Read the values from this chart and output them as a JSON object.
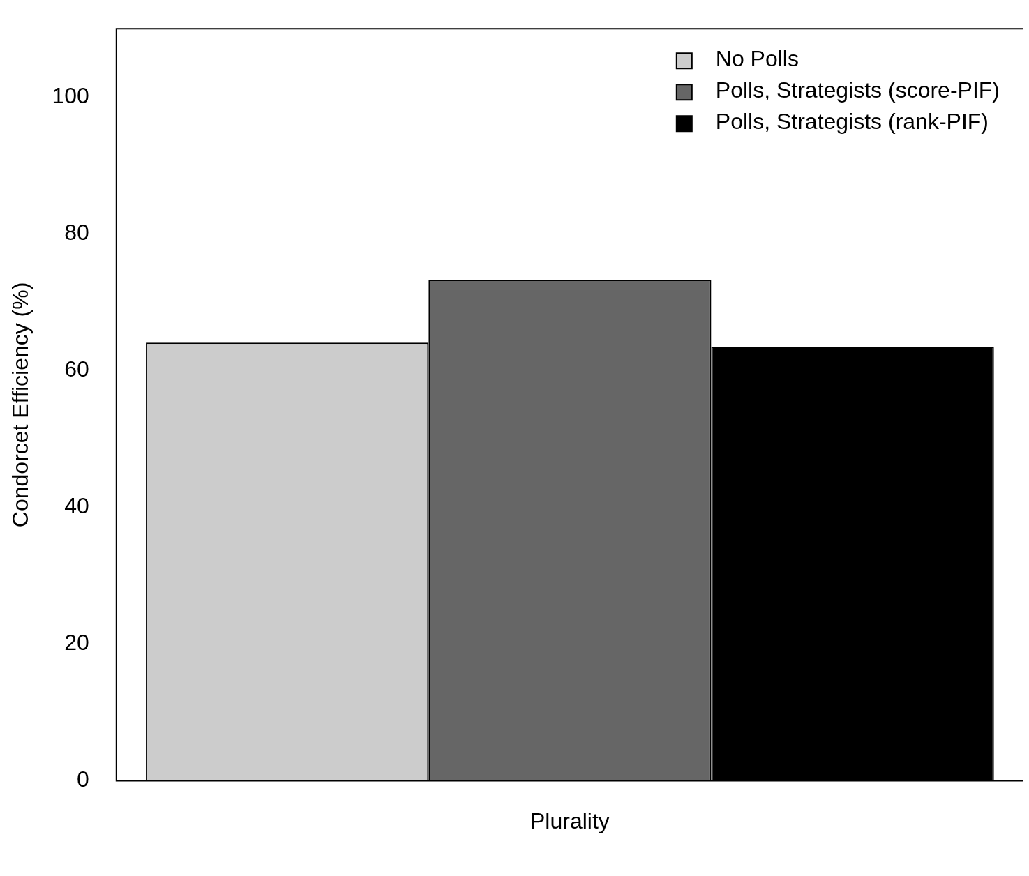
{
  "chart_data": {
    "type": "bar",
    "ylabel": "Condorcet Efficiency (%)",
    "categories": [
      "Plurality"
    ],
    "series": [
      {
        "name": "No Polls",
        "color": "#cccccc",
        "values": [
          64.1
        ]
      },
      {
        "name": "Polls, Strategists (score-PIF)",
        "color": "#666666",
        "values": [
          73.3
        ]
      },
      {
        "name": "Polls, Strategists (rank-PIF)",
        "color": "#000000",
        "values": [
          63.5
        ]
      }
    ],
    "ylim": [
      0,
      110
    ],
    "yticks": [
      0,
      20,
      40,
      60,
      80,
      100
    ],
    "grid": false,
    "legend": "top right"
  }
}
